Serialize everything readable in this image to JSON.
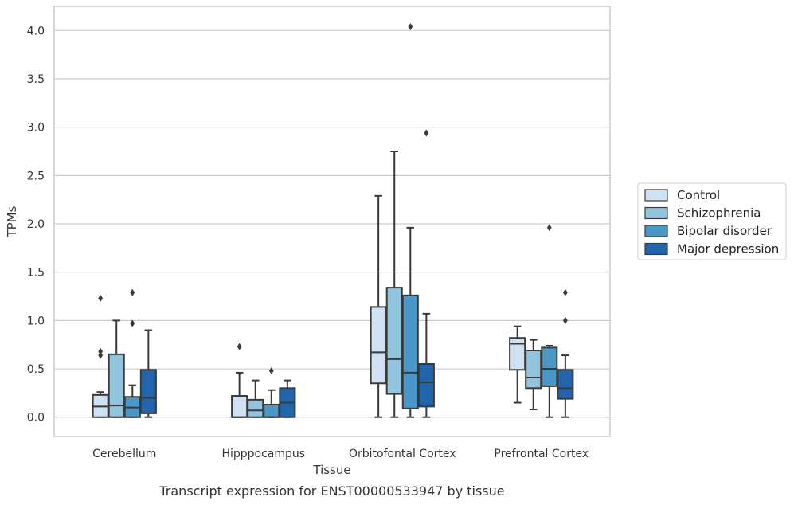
{
  "chart_data": {
    "type": "box",
    "xlabel": "Tissue",
    "ylabel": "TPMs",
    "caption": "Transcript expression for ENST00000533947 by tissue",
    "ylim": [
      -0.2,
      4.25
    ],
    "yticks": [
      "0.0",
      "0.5",
      "1.0",
      "1.5",
      "2.0",
      "2.5",
      "3.0",
      "3.5",
      "4.0"
    ],
    "grid": "horizontal",
    "legend_position": "right",
    "categories": [
      "Cerebellum",
      "Hipppocampus",
      "Orbitofontal Cortex",
      "Prefrontal Cortex"
    ],
    "series": [
      {
        "name": "Control",
        "color": "#cfe1f2",
        "boxes": [
          {
            "whislo": 0.0,
            "q1": 0.0,
            "med": 0.11,
            "q3": 0.23,
            "whishi": 0.26,
            "fliers": [
              0.64,
              0.68,
              1.23
            ]
          },
          {
            "whislo": 0.0,
            "q1": 0.0,
            "med": 0.0,
            "q3": 0.22,
            "whishi": 0.46,
            "fliers": [
              0.73
            ]
          },
          {
            "whislo": 0.0,
            "q1": 0.35,
            "med": 0.67,
            "q3": 1.14,
            "whishi": 2.29,
            "fliers": []
          },
          {
            "whislo": 0.15,
            "q1": 0.49,
            "med": 0.76,
            "q3": 0.82,
            "whishi": 0.94,
            "fliers": []
          }
        ]
      },
      {
        "name": "Schizophrenia",
        "color": "#93c4de",
        "boxes": [
          {
            "whislo": 0.0,
            "q1": 0.0,
            "med": 0.12,
            "q3": 0.65,
            "whishi": 1.0,
            "fliers": []
          },
          {
            "whislo": 0.0,
            "q1": 0.0,
            "med": 0.07,
            "q3": 0.18,
            "whishi": 0.38,
            "fliers": []
          },
          {
            "whislo": 0.0,
            "q1": 0.24,
            "med": 0.6,
            "q3": 1.34,
            "whishi": 2.75,
            "fliers": []
          },
          {
            "whislo": 0.08,
            "q1": 0.3,
            "med": 0.41,
            "q3": 0.69,
            "whishi": 0.8,
            "fliers": []
          }
        ]
      },
      {
        "name": "Bipolar disorder",
        "color": "#4a98c9",
        "boxes": [
          {
            "whislo": 0.0,
            "q1": 0.0,
            "med": 0.1,
            "q3": 0.21,
            "whishi": 0.33,
            "fliers": [
              0.97,
              1.29
            ]
          },
          {
            "whislo": 0.0,
            "q1": 0.0,
            "med": 0.0,
            "q3": 0.13,
            "whishi": 0.28,
            "fliers": [
              0.48
            ]
          },
          {
            "whislo": 0.0,
            "q1": 0.09,
            "med": 0.46,
            "q3": 1.26,
            "whishi": 1.96,
            "fliers": [
              4.04
            ]
          },
          {
            "whislo": 0.0,
            "q1": 0.32,
            "med": 0.5,
            "q3": 0.72,
            "whishi": 0.74,
            "fliers": [
              1.96
            ]
          }
        ]
      },
      {
        "name": "Major depression",
        "color": "#2166ac",
        "boxes": [
          {
            "whislo": 0.0,
            "q1": 0.04,
            "med": 0.2,
            "q3": 0.49,
            "whishi": 0.9,
            "fliers": []
          },
          {
            "whislo": 0.0,
            "q1": 0.0,
            "med": 0.15,
            "q3": 0.3,
            "whishi": 0.38,
            "fliers": []
          },
          {
            "whislo": 0.0,
            "q1": 0.11,
            "med": 0.36,
            "q3": 0.55,
            "whishi": 1.07,
            "fliers": [
              2.94
            ]
          },
          {
            "whislo": 0.0,
            "q1": 0.19,
            "med": 0.3,
            "q3": 0.49,
            "whishi": 0.64,
            "fliers": [
              1.0,
              1.29
            ]
          }
        ]
      }
    ]
  }
}
